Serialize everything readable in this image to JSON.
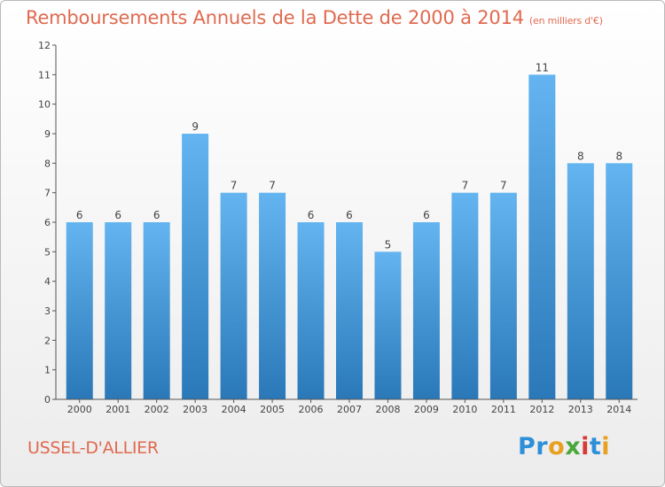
{
  "page": {
    "title": "Remboursements Annuels de la Dette de 2000 à 2014",
    "unit": "(en milliers d'€)",
    "commune": "USSEL-D'ALLIER",
    "logo_text": "Proxiti",
    "colors": {
      "title": "#e06a50",
      "bar_top": "#63b4f0",
      "bar_bottom": "#2a78b8",
      "logo_letters": [
        "#2d8fd8",
        "#2d8fd8",
        "#e8a020",
        "#4aa83a",
        "#d83a3a",
        "#2d8fd8",
        "#e8a020"
      ]
    }
  },
  "chart_data": {
    "type": "bar",
    "title": "Remboursements Annuels de la Dette de 2000 à 2014",
    "subtitle": "(en milliers d'€)",
    "xlabel": "",
    "ylabel": "",
    "categories": [
      "2000",
      "2001",
      "2002",
      "2003",
      "2004",
      "2005",
      "2006",
      "2007",
      "2008",
      "2009",
      "2010",
      "2011",
      "2012",
      "2013",
      "2014"
    ],
    "values": [
      6,
      6,
      6,
      9,
      7,
      7,
      6,
      6,
      5,
      6,
      7,
      7,
      11,
      8,
      8
    ],
    "data_labels": [
      "6",
      "6",
      "6",
      "9",
      "7",
      "7",
      "6",
      "6",
      "5",
      "6",
      "7",
      "7",
      "11",
      "8",
      "8"
    ],
    "yticks": [
      "0",
      "1",
      "2",
      "3",
      "4",
      "5",
      "6",
      "7",
      "8",
      "9",
      "10",
      "11",
      "12"
    ],
    "ylim": [
      0,
      12
    ],
    "grid": false,
    "legend": "none"
  }
}
